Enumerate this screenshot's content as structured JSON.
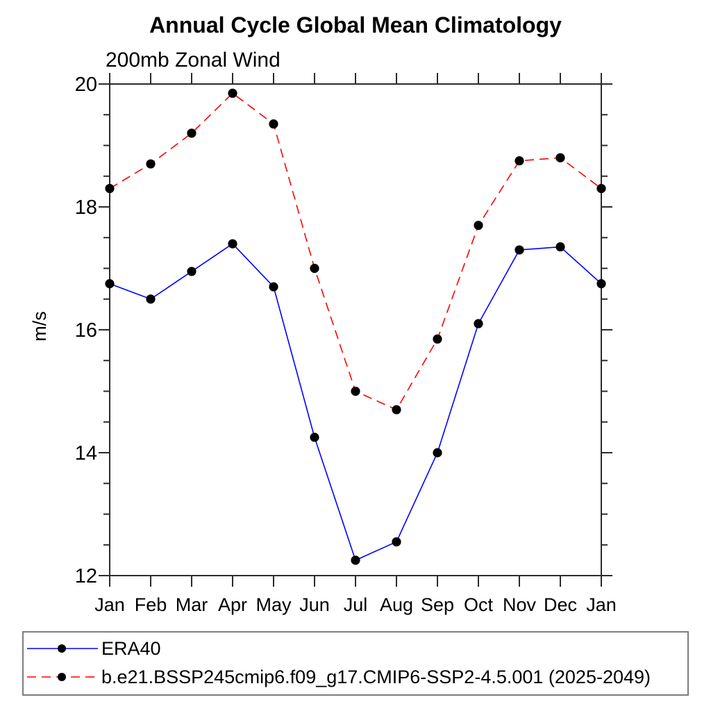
{
  "header": {
    "title": "Annual Cycle Global Mean Climatology",
    "subtitle": "200mb Zonal Wind"
  },
  "chart_data": {
    "type": "line",
    "title": "Annual Cycle Global Mean Climatology",
    "subtitle": "200mb Zonal Wind",
    "xlabel": "",
    "ylabel": "m/s",
    "x_categories": [
      "Jan",
      "Feb",
      "Mar",
      "Apr",
      "May",
      "Jun",
      "Jul",
      "Aug",
      "Sep",
      "Oct",
      "Nov",
      "Dec",
      "Jan"
    ],
    "ylim": [
      12,
      20
    ],
    "y_major_ticks": [
      12,
      14,
      16,
      18,
      20
    ],
    "y_minor_step": 0.5,
    "grid": false,
    "tick_direction": "out",
    "legend_position": "bottom-left-box",
    "colors": {
      "axis": "#2b2b2b",
      "text": "#000000",
      "era40_line": "#0000ff",
      "model_line": "#ff0000",
      "marker": "#000000",
      "legend_border": "#7d7d7d"
    },
    "series": [
      {
        "name": "ERA40",
        "color": "#0000ff",
        "line_style": "solid",
        "marker": "filled-circle",
        "marker_color": "#000000",
        "values": [
          16.75,
          16.5,
          16.95,
          17.4,
          16.7,
          14.25,
          12.25,
          12.55,
          14.0,
          16.1,
          17.3,
          17.35,
          16.75
        ]
      },
      {
        "name": "b.e21.BSSP245cmip6.f09_g17.CMIP6-SSP2-4.5.001 (2025-2049)",
        "color": "#ff0000",
        "line_style": "dashed",
        "marker": "filled-circle",
        "marker_color": "#000000",
        "values": [
          18.3,
          18.7,
          19.2,
          19.85,
          19.35,
          17.0,
          15.0,
          14.7,
          15.85,
          17.7,
          18.75,
          18.8,
          18.3
        ]
      }
    ]
  }
}
